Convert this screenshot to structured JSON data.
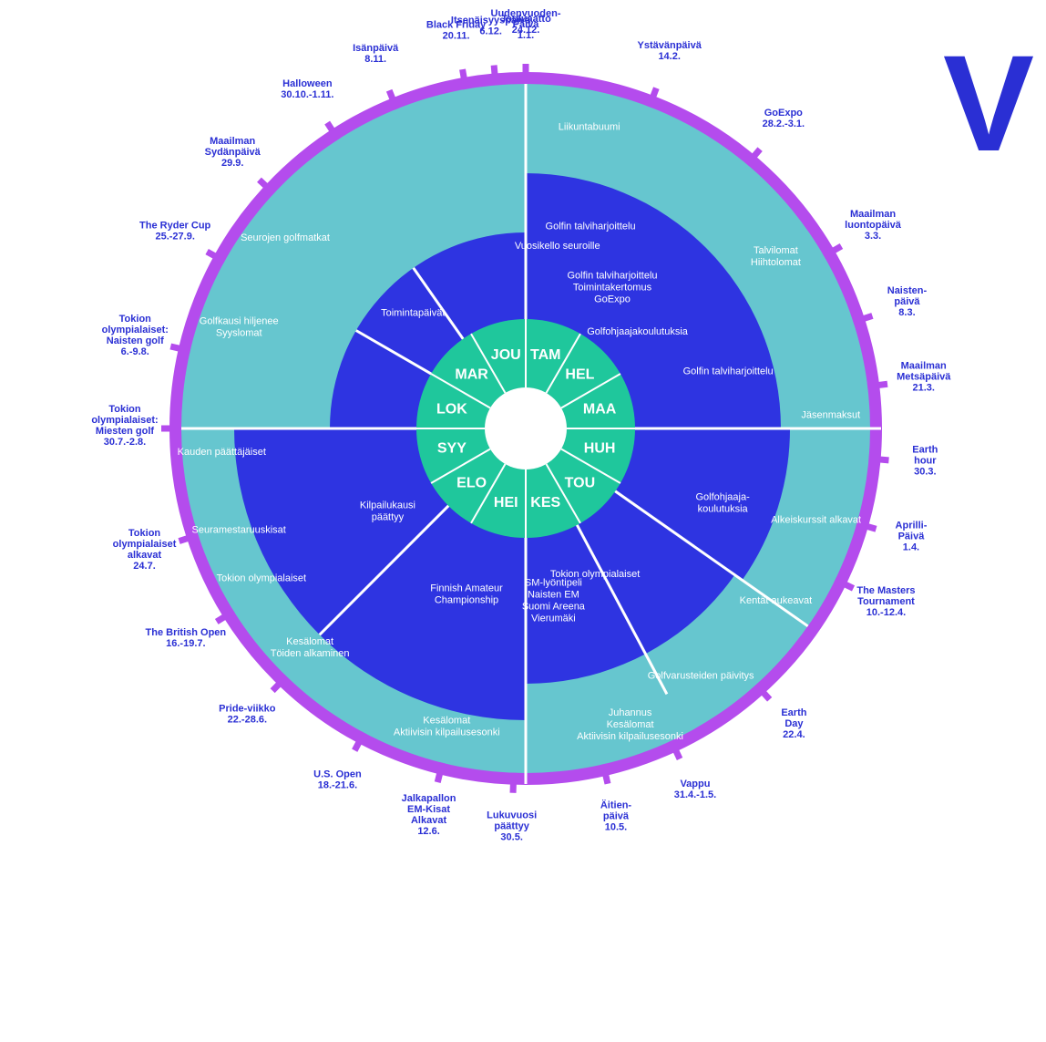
{
  "big_letter": "V",
  "colors": {
    "outer_ring": "#b44ced",
    "teal": "#66c6cf",
    "navy": "#2e34e1",
    "center_green": "#1fc79c",
    "label": "#2a2fd4"
  },
  "months": [
    "TAM",
    "HEL",
    "MAA",
    "HUH",
    "TOU",
    "KES",
    "HEI",
    "ELO",
    "SYY",
    "LOK",
    "MAR",
    "JOU"
  ],
  "events": [
    {
      "lines": [
        "Uudenvuoden-",
        "Päivä",
        "1.1."
      ]
    },
    {
      "lines": [
        "Ystävänpäivä",
        "14.2."
      ]
    },
    {
      "lines": [
        "GoExpo",
        "28.2.-3.1."
      ]
    },
    {
      "lines": [
        "Maailman",
        "luontopäivä",
        "3.3."
      ]
    },
    {
      "lines": [
        "Naisten-",
        "päivä",
        "8.3."
      ]
    },
    {
      "lines": [
        "Maailman",
        "Metsäpäivä",
        "21.3."
      ]
    },
    {
      "lines": [
        "Earth",
        "hour",
        "30.3."
      ]
    },
    {
      "lines": [
        "Aprilli-",
        "Päivä",
        "1.4."
      ]
    },
    {
      "lines": [
        "The Masters",
        "Tournament",
        "10.-12.4."
      ]
    },
    {
      "lines": [
        "Earth",
        "Day",
        "22.4."
      ]
    },
    {
      "lines": [
        "Vappu",
        "31.4.-1.5."
      ]
    },
    {
      "lines": [
        "Äitien-",
        "päivä",
        "10.5."
      ]
    },
    {
      "lines": [
        "Lukuvuosi",
        "päättyy",
        "30.5."
      ]
    },
    {
      "lines": [
        "Jalkapallon",
        "EM-Kisat",
        "Alkavat",
        "12.6."
      ]
    },
    {
      "lines": [
        "U.S. Open",
        "18.-21.6."
      ]
    },
    {
      "lines": [
        "Pride-viikko",
        "22.-28.6."
      ]
    },
    {
      "lines": [
        "The British Open",
        "16.-19.7."
      ]
    },
    {
      "lines": [
        "Tokion",
        "olympialaiset",
        "alkavat",
        "24.7."
      ]
    },
    {
      "lines": [
        "Tokion",
        "olympialaiset:",
        "Miesten golf",
        "30.7.-2.8."
      ]
    },
    {
      "lines": [
        "Tokion",
        "olympialaiset:",
        "Naisten golf",
        "6.-9.8."
      ]
    },
    {
      "lines": [
        "The Ryder Cup",
        "25.-27.9."
      ]
    },
    {
      "lines": [
        "Maailman",
        "Sydänpäivä",
        "29.9."
      ]
    },
    {
      "lines": [
        "Halloween",
        "30.10.-1.11."
      ]
    },
    {
      "lines": [
        "Isänpäivä",
        "8.11."
      ]
    },
    {
      "lines": [
        "Black Friday",
        "20.11."
      ]
    },
    {
      "lines": [
        "Itsenäisyyspäivä",
        "6.12."
      ]
    },
    {
      "lines": [
        "Jouluaatto",
        "24.12."
      ]
    }
  ],
  "teal_labels": [
    {
      "lines": [
        "Liikuntabuumi"
      ]
    },
    {
      "lines": [
        "Talvilomat",
        "Hiihtolomat"
      ]
    },
    {
      "lines": [
        "Jäsenmaksut"
      ]
    },
    {
      "lines": [
        "Alkeiskurssit alkavat"
      ]
    },
    {
      "lines": [
        "Kentät aukeavat"
      ]
    },
    {
      "lines": [
        "Golfvarusteiden päivitys"
      ]
    },
    {
      "lines": [
        "Juhannus",
        "Kesälomat",
        "Aktiivisin kilpailusesonki"
      ]
    },
    {
      "lines": [
        "Kesälomat",
        "Aktiivisin kilpailusesonki"
      ]
    },
    {
      "lines": [
        "Kesälomat",
        "Töiden alkaminen"
      ]
    },
    {
      "lines": [
        "Tokion olympialaiset"
      ]
    },
    {
      "lines": [
        "Seuramestaruuskisat"
      ]
    },
    {
      "lines": [
        "Kauden päättäjäiset"
      ]
    },
    {
      "lines": [
        "Golfkausi hiljenee",
        "Syyslomat"
      ]
    },
    {
      "lines": [
        "Seurojen golfmatkat"
      ]
    },
    {
      "lines": [
        "Golfin talviharjoittelu"
      ]
    }
  ],
  "navy_labels": [
    {
      "lines": [
        "Vuosikello seuroille"
      ]
    },
    {
      "lines": [
        "Golfin talviharjoittelu",
        "Toimintakertomus",
        "GoExpo"
      ]
    },
    {
      "lines": [
        "Golfohjaajakoulutuksia"
      ]
    },
    {
      "lines": [
        "Golfin talviharjoittelu"
      ]
    },
    {
      "lines": [
        "Golfohjaaja-",
        "koulutuksia"
      ]
    },
    {
      "lines": [
        "Tokion olympialaiset"
      ]
    },
    {
      "lines": [
        "SM-lyöntipeli",
        "Naisten EM",
        "Suomi Areena",
        "Vierumäki"
      ]
    },
    {
      "lines": [
        "Finnish Amateur",
        "Championship"
      ]
    },
    {
      "lines": [
        "Kilpailukausi",
        "päättyy"
      ]
    },
    {
      "lines": [
        "Toimintapäivät"
      ]
    }
  ]
}
